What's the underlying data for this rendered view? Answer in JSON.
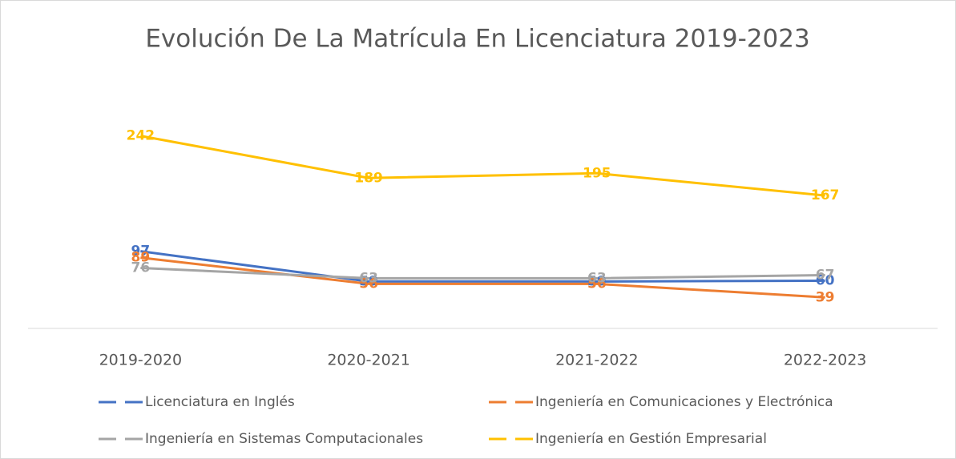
{
  "chart_data": {
    "type": "line",
    "title": "Evolución De La Matrícula En Licenciatura 2019-2023",
    "categories": [
      "2019-2020",
      "2020-2021",
      "2021-2022",
      "2022-2023"
    ],
    "ylim": [
      0,
      300
    ],
    "series": [
      {
        "name": "Licenciatura en Inglés",
        "color": "#4472c4",
        "values": [
          97,
          59,
          59,
          60
        ]
      },
      {
        "name": "Ingeniería en Comunicaciones y Electrónica",
        "color": "#ed7d31",
        "values": [
          89,
          56,
          56,
          39
        ]
      },
      {
        "name": "Ingeniería en Sistemas Computacionales",
        "color": "#a5a5a5",
        "values": [
          76,
          63,
          63,
          67
        ]
      },
      {
        "name": "Ingeniería en Gestión Empresarial",
        "color": "#ffc000",
        "values": [
          242,
          189,
          195,
          167
        ]
      }
    ]
  }
}
